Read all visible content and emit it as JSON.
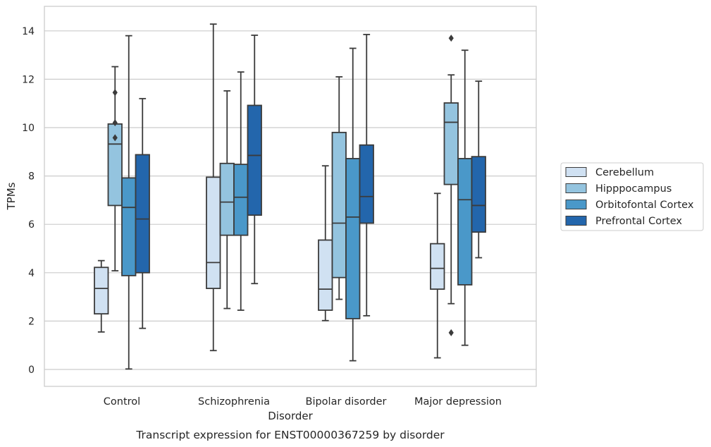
{
  "chart_data": {
    "type": "box",
    "title": "Transcript expression for ENST00000367259 by disorder",
    "xlabel": "Disorder",
    "ylabel": "TPMs",
    "ylim": [
      -0.7,
      15.0
    ],
    "yticks": [
      0,
      2,
      4,
      6,
      8,
      10,
      12,
      14
    ],
    "grid": true,
    "legend_position": "right",
    "categories": [
      "Control",
      "Schizophrenia",
      "Bipolar disorder",
      "Major depression"
    ],
    "colors": [
      "#d0e1f2",
      "#94c4df",
      "#4a98c9",
      "#2366ac"
    ],
    "edge_color": "#3b3b3b",
    "series": [
      {
        "name": "Cerebellum",
        "boxes": [
          {
            "whisker_low": 1.55,
            "q1": 2.3,
            "median": 3.35,
            "q3": 4.22,
            "whisker_high": 4.5,
            "outliers": []
          },
          {
            "whisker_low": 0.78,
            "q1": 3.35,
            "median": 4.42,
            "q3": 7.95,
            "whisker_high": 14.28,
            "outliers": []
          },
          {
            "whisker_low": 2.02,
            "q1": 2.45,
            "median": 3.32,
            "q3": 5.35,
            "whisker_high": 8.42,
            "outliers": []
          },
          {
            "whisker_low": 0.48,
            "q1": 3.32,
            "median": 4.18,
            "q3": 5.2,
            "whisker_high": 7.28,
            "outliers": []
          }
        ]
      },
      {
        "name": "Hipppocampus",
        "boxes": [
          {
            "whisker_low": 4.08,
            "q1": 6.78,
            "median": 9.32,
            "q3": 10.15,
            "whisker_high": 12.52,
            "outliers": [
              11.45,
              10.2,
              9.58
            ]
          },
          {
            "whisker_low": 2.52,
            "q1": 5.55,
            "median": 6.92,
            "q3": 8.52,
            "whisker_high": 11.52,
            "outliers": []
          },
          {
            "whisker_low": 2.9,
            "q1": 3.8,
            "median": 6.05,
            "q3": 9.8,
            "whisker_high": 12.1,
            "outliers": []
          },
          {
            "whisker_low": 2.72,
            "q1": 7.65,
            "median": 10.22,
            "q3": 11.02,
            "whisker_high": 12.18,
            "outliers": [
              13.7,
              1.52
            ]
          }
        ]
      },
      {
        "name": "Orbitofontal Cortex",
        "boxes": [
          {
            "whisker_low": 0.02,
            "q1": 3.88,
            "median": 6.7,
            "q3": 7.92,
            "whisker_high": 13.8,
            "outliers": []
          },
          {
            "whisker_low": 2.45,
            "q1": 5.55,
            "median": 7.12,
            "q3": 8.48,
            "whisker_high": 12.3,
            "outliers": []
          },
          {
            "whisker_low": 0.36,
            "q1": 2.1,
            "median": 6.3,
            "q3": 8.72,
            "whisker_high": 13.28,
            "outliers": []
          },
          {
            "whisker_low": 1.0,
            "q1": 3.5,
            "median": 7.02,
            "q3": 8.72,
            "whisker_high": 13.2,
            "outliers": []
          }
        ]
      },
      {
        "name": "Prefrontal Cortex",
        "boxes": [
          {
            "whisker_low": 1.7,
            "q1": 4.0,
            "median": 6.22,
            "q3": 8.88,
            "whisker_high": 11.2,
            "outliers": []
          },
          {
            "whisker_low": 3.55,
            "q1": 6.38,
            "median": 8.85,
            "q3": 10.92,
            "whisker_high": 13.82,
            "outliers": []
          },
          {
            "whisker_low": 2.22,
            "q1": 6.05,
            "median": 7.15,
            "q3": 9.28,
            "whisker_high": 13.85,
            "outliers": []
          },
          {
            "whisker_low": 4.62,
            "q1": 5.68,
            "median": 6.78,
            "q3": 8.8,
            "whisker_high": 11.92,
            "outliers": []
          }
        ]
      }
    ]
  }
}
